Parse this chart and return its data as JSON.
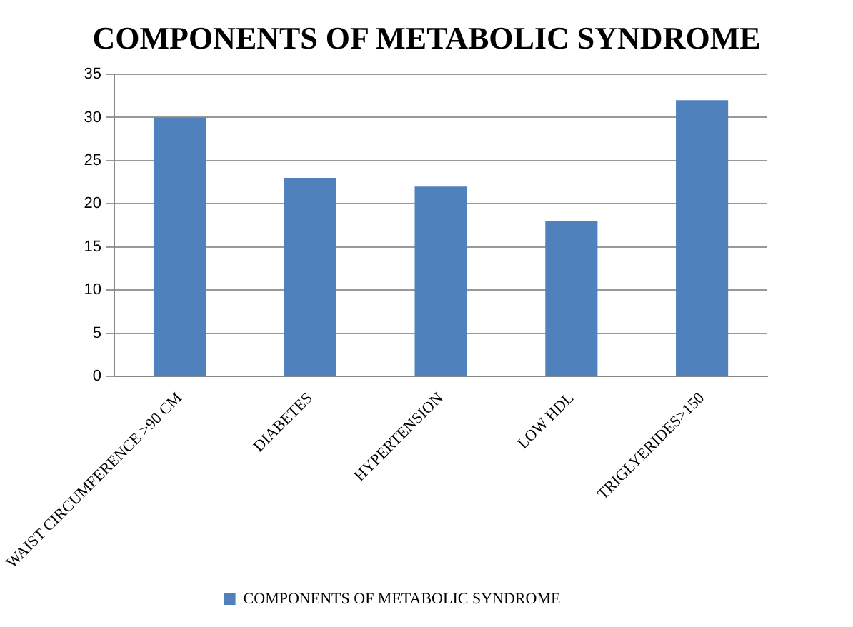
{
  "chart_data": {
    "type": "bar",
    "title": "COMPONENTS OF METABOLIC SYNDROME",
    "categories": [
      "WAIST CIRCUMFERENCE >90 CM",
      "DIABETES",
      "HYPERTENSION",
      "LOW HDL",
      "TRIGLYERIDES>150"
    ],
    "series": [
      {
        "name": "COMPONENTS OF METABOLIC SYNDROME",
        "color": "#4f81bd",
        "values": [
          30,
          23,
          22,
          18,
          32
        ]
      }
    ],
    "ylim": [
      0,
      35
    ],
    "yticks": [
      0,
      5,
      10,
      15,
      20,
      25,
      30,
      35
    ],
    "grid": "y",
    "legend": "bottom"
  }
}
